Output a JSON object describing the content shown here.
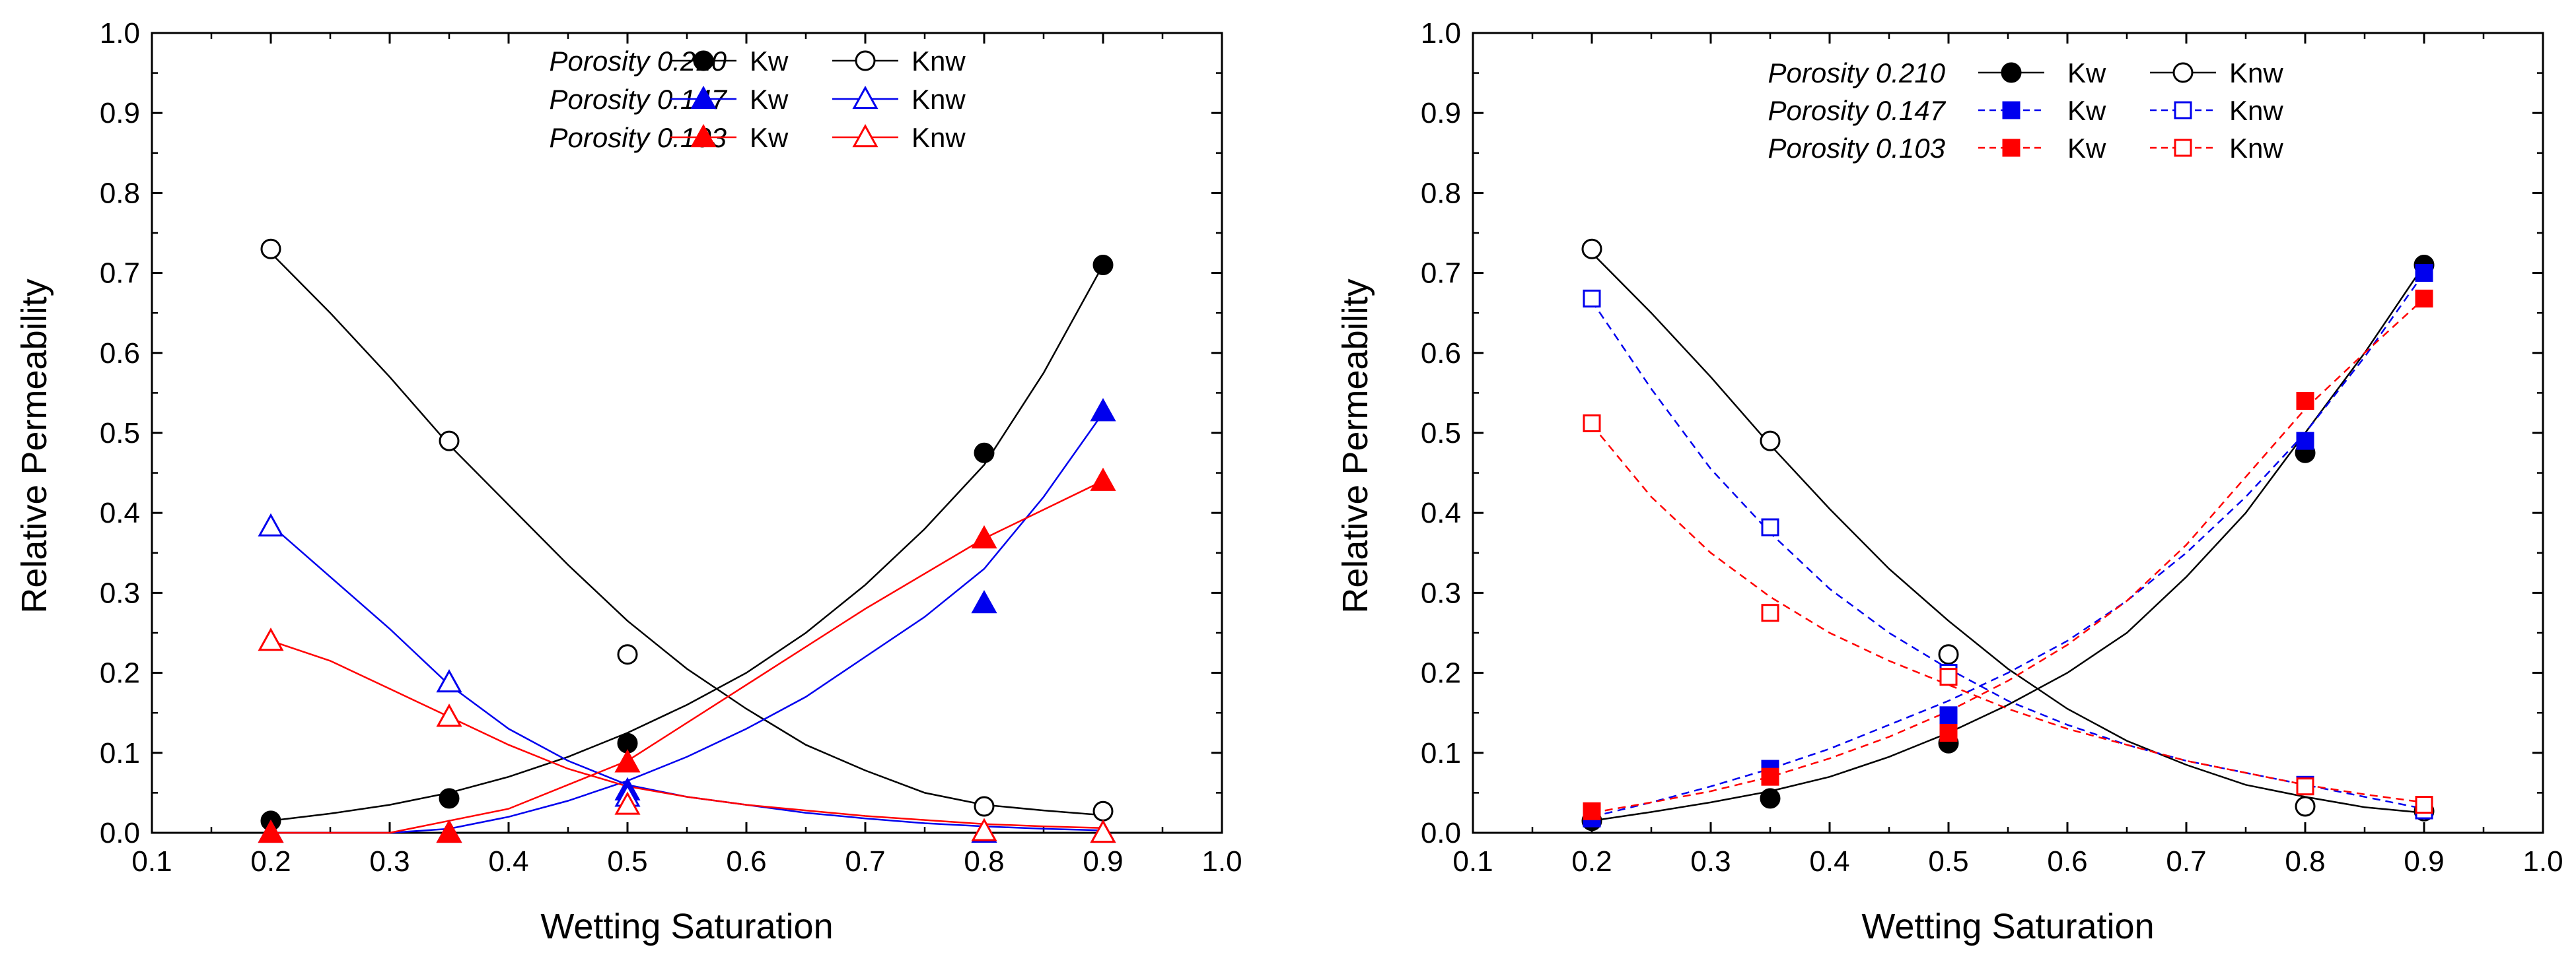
{
  "chart_data": [
    {
      "type": "scatter",
      "xlabel": "Wetting Saturation",
      "ylabel": "Relative Permeability",
      "xlim": [
        0.1,
        1.0
      ],
      "ylim": [
        0.0,
        1.0
      ],
      "xticks": [
        "0.1",
        "0.2",
        "0.3",
        "0.4",
        "0.5",
        "0.6",
        "0.7",
        "0.8",
        "0.9",
        "1.0"
      ],
      "yticks": [
        "0.0",
        "0.1",
        "0.2",
        "0.3",
        "0.4",
        "0.5",
        "0.6",
        "0.7",
        "0.8",
        "0.9",
        "1.0"
      ],
      "grid": false,
      "legend_position": "top",
      "legend_rows": [
        {
          "label": "Porosity 0.210",
          "kw": "Kw",
          "knw": "Knw"
        },
        {
          "label": "Porosity 0.147",
          "kw": "Kw",
          "knw": "Knw"
        },
        {
          "label": "Porosity 0.103",
          "kw": "Kw",
          "knw": "Knw"
        }
      ],
      "series": [
        {
          "group": 0,
          "kind": "Kw",
          "color": "#000000",
          "marker": "circle-filled",
          "line": "solid",
          "x": [
            0.2,
            0.35,
            0.5,
            0.8,
            0.9
          ],
          "y": [
            0.015,
            0.043,
            0.112,
            0.475,
            0.71
          ],
          "fit": {
            "x": [
              0.2,
              0.25,
              0.3,
              0.35,
              0.4,
              0.45,
              0.5,
              0.55,
              0.6,
              0.65,
              0.7,
              0.75,
              0.8,
              0.85,
              0.9
            ],
            "y": [
              0.015,
              0.024,
              0.035,
              0.05,
              0.07,
              0.095,
              0.125,
              0.16,
              0.2,
              0.25,
              0.31,
              0.38,
              0.46,
              0.575,
              0.71
            ]
          }
        },
        {
          "group": 0,
          "kind": "Knw",
          "color": "#000000",
          "marker": "circle-open",
          "line": "solid",
          "x": [
            0.2,
            0.35,
            0.5,
            0.8,
            0.9
          ],
          "y": [
            0.73,
            0.49,
            0.223,
            0.033,
            0.027
          ],
          "fit": {
            "x": [
              0.2,
              0.25,
              0.3,
              0.35,
              0.4,
              0.45,
              0.5,
              0.55,
              0.6,
              0.65,
              0.7,
              0.75,
              0.8,
              0.85,
              0.9
            ],
            "y": [
              0.725,
              0.65,
              0.57,
              0.485,
              0.41,
              0.335,
              0.265,
              0.205,
              0.155,
              0.11,
              0.078,
              0.05,
              0.035,
              0.028,
              0.022
            ]
          }
        },
        {
          "group": 1,
          "kind": "Kw",
          "color": "#0000ee",
          "marker": "triangle-filled",
          "line": "solid",
          "x": [
            0.2,
            0.35,
            0.5,
            0.8,
            0.9
          ],
          "y": [
            0.0,
            0.0,
            0.053,
            0.287,
            0.527
          ],
          "fit": {
            "x": [
              0.2,
              0.25,
              0.3,
              0.35,
              0.4,
              0.45,
              0.5,
              0.55,
              0.6,
              0.65,
              0.7,
              0.75,
              0.8,
              0.85,
              0.9
            ],
            "y": [
              0.0,
              0.0,
              0.0,
              0.005,
              0.02,
              0.04,
              0.065,
              0.095,
              0.13,
              0.17,
              0.22,
              0.27,
              0.33,
              0.42,
              0.525
            ]
          }
        },
        {
          "group": 1,
          "kind": "Knw",
          "color": "#0000ee",
          "marker": "triangle-open",
          "line": "solid",
          "x": [
            0.2,
            0.35,
            0.5,
            0.8,
            0.9
          ],
          "y": [
            0.383,
            0.188,
            0.045,
            0.0,
            0.0
          ],
          "fit": {
            "x": [
              0.2,
              0.25,
              0.3,
              0.35,
              0.4,
              0.45,
              0.5,
              0.55,
              0.6,
              0.65,
              0.7,
              0.75,
              0.8,
              0.85,
              0.9
            ],
            "y": [
              0.385,
              0.32,
              0.255,
              0.185,
              0.13,
              0.09,
              0.06,
              0.045,
              0.035,
              0.025,
              0.018,
              0.012,
              0.008,
              0.005,
              0.003
            ]
          }
        },
        {
          "group": 2,
          "kind": "Kw",
          "color": "#ff0000",
          "marker": "triangle-filled",
          "line": "solid",
          "x": [
            0.2,
            0.35,
            0.5,
            0.8,
            0.9
          ],
          "y": [
            0.0,
            0.0,
            0.088,
            0.368,
            0.44
          ],
          "fit": {
            "x": [
              0.2,
              0.3,
              0.4,
              0.5,
              0.6,
              0.7,
              0.8,
              0.9
            ],
            "y": [
              0.0,
              0.0,
              0.03,
              0.09,
              0.185,
              0.28,
              0.368,
              0.44
            ]
          }
        },
        {
          "group": 2,
          "kind": "Knw",
          "color": "#ff0000",
          "marker": "triangle-open",
          "line": "solid",
          "x": [
            0.2,
            0.35,
            0.5,
            0.8,
            0.9
          ],
          "y": [
            0.24,
            0.145,
            0.035,
            0.002,
            0.0
          ],
          "fit": {
            "x": [
              0.2,
              0.25,
              0.3,
              0.35,
              0.4,
              0.45,
              0.5,
              0.55,
              0.6,
              0.65,
              0.7,
              0.75,
              0.8,
              0.85,
              0.9
            ],
            "y": [
              0.24,
              0.215,
              0.18,
              0.145,
              0.11,
              0.08,
              0.058,
              0.045,
              0.035,
              0.028,
              0.021,
              0.016,
              0.011,
              0.008,
              0.006
            ]
          }
        }
      ]
    },
    {
      "type": "scatter",
      "xlabel": "Wetting Saturation",
      "ylabel": "Relative Permeability",
      "xlim": [
        0.1,
        1.0
      ],
      "ylim": [
        0.0,
        1.0
      ],
      "xticks": [
        "0.1",
        "0.2",
        "0.3",
        "0.4",
        "0.5",
        "0.6",
        "0.7",
        "0.8",
        "0.9",
        "1.0"
      ],
      "yticks": [
        "0.0",
        "0.1",
        "0.2",
        "0.3",
        "0.4",
        "0.5",
        "0.6",
        "0.7",
        "0.8",
        "0.9",
        "1.0"
      ],
      "grid": false,
      "legend_position": "top-right",
      "legend_rows": [
        {
          "label": "Porosity 0.210",
          "kw": "Kw",
          "knw": "Knw"
        },
        {
          "label": "Porosity 0.147",
          "kw": "Kw",
          "knw": "Knw"
        },
        {
          "label": "Porosity 0.103",
          "kw": "Kw",
          "knw": "Knw"
        }
      ],
      "series": [
        {
          "group": 0,
          "kind": "Kw",
          "color": "#000000",
          "marker": "circle-filled",
          "line": "solid",
          "x": [
            0.2,
            0.35,
            0.5,
            0.8,
            0.9
          ],
          "y": [
            0.015,
            0.043,
            0.112,
            0.475,
            0.71
          ],
          "fit": {
            "x": [
              0.2,
              0.25,
              0.3,
              0.35,
              0.4,
              0.45,
              0.5,
              0.55,
              0.6,
              0.65,
              0.7,
              0.75,
              0.8,
              0.85,
              0.9
            ],
            "y": [
              0.015,
              0.026,
              0.038,
              0.052,
              0.07,
              0.095,
              0.125,
              0.16,
              0.2,
              0.25,
              0.32,
              0.4,
              0.5,
              0.6,
              0.71
            ]
          }
        },
        {
          "group": 0,
          "kind": "Knw",
          "color": "#000000",
          "marker": "circle-open",
          "line": "solid",
          "x": [
            0.2,
            0.35,
            0.5,
            0.8,
            0.9
          ],
          "y": [
            0.73,
            0.49,
            0.223,
            0.033,
            0.027
          ],
          "fit": {
            "x": [
              0.2,
              0.25,
              0.3,
              0.35,
              0.4,
              0.45,
              0.5,
              0.55,
              0.6,
              0.65,
              0.7,
              0.75,
              0.8,
              0.85,
              0.9
            ],
            "y": [
              0.725,
              0.65,
              0.57,
              0.485,
              0.405,
              0.33,
              0.265,
              0.205,
              0.155,
              0.115,
              0.085,
              0.06,
              0.045,
              0.032,
              0.025
            ]
          }
        },
        {
          "group": 1,
          "kind": "Kw",
          "color": "#0000ee",
          "marker": "square-filled",
          "line": "dashed",
          "x": [
            0.2,
            0.35,
            0.5,
            0.8,
            0.9
          ],
          "y": [
            0.018,
            0.08,
            0.147,
            0.49,
            0.7
          ],
          "fit": {
            "x": [
              0.2,
              0.25,
              0.3,
              0.35,
              0.4,
              0.45,
              0.5,
              0.55,
              0.6,
              0.65,
              0.7,
              0.75,
              0.8,
              0.85,
              0.9
            ],
            "y": [
              0.02,
              0.038,
              0.058,
              0.08,
              0.105,
              0.135,
              0.165,
              0.2,
              0.24,
              0.29,
              0.35,
              0.42,
              0.5,
              0.595,
              0.7
            ]
          }
        },
        {
          "group": 1,
          "kind": "Knw",
          "color": "#0000ee",
          "marker": "square-open",
          "line": "dashed",
          "x": [
            0.2,
            0.35,
            0.5,
            0.8,
            0.9
          ],
          "y": [
            0.668,
            0.382,
            0.2,
            0.06,
            0.028
          ],
          "fit": {
            "x": [
              0.2,
              0.25,
              0.3,
              0.35,
              0.4,
              0.45,
              0.5,
              0.55,
              0.6,
              0.65,
              0.7,
              0.75,
              0.8,
              0.85,
              0.9
            ],
            "y": [
              0.665,
              0.555,
              0.455,
              0.375,
              0.305,
              0.25,
              0.205,
              0.165,
              0.135,
              0.11,
              0.09,
              0.075,
              0.06,
              0.045,
              0.03
            ]
          }
        },
        {
          "group": 2,
          "kind": "Kw",
          "color": "#ff0000",
          "marker": "square-filled",
          "line": "dashed",
          "x": [
            0.2,
            0.35,
            0.5,
            0.8,
            0.9
          ],
          "y": [
            0.027,
            0.07,
            0.125,
            0.54,
            0.668
          ],
          "fit": {
            "x": [
              0.2,
              0.25,
              0.3,
              0.35,
              0.4,
              0.45,
              0.5,
              0.55,
              0.6,
              0.65,
              0.7,
              0.75,
              0.8,
              0.85,
              0.9
            ],
            "y": [
              0.025,
              0.038,
              0.052,
              0.07,
              0.093,
              0.12,
              0.152,
              0.19,
              0.235,
              0.29,
              0.36,
              0.445,
              0.53,
              0.6,
              0.668
            ]
          }
        },
        {
          "group": 2,
          "kind": "Knw",
          "color": "#ff0000",
          "marker": "square-open",
          "line": "dashed",
          "x": [
            0.2,
            0.35,
            0.5,
            0.8,
            0.9
          ],
          "y": [
            0.512,
            0.275,
            0.195,
            0.058,
            0.035
          ],
          "fit": {
            "x": [
              0.2,
              0.25,
              0.3,
              0.35,
              0.4,
              0.45,
              0.5,
              0.55,
              0.6,
              0.65,
              0.7,
              0.75,
              0.8,
              0.85,
              0.9
            ],
            "y": [
              0.51,
              0.42,
              0.35,
              0.295,
              0.25,
              0.215,
              0.185,
              0.155,
              0.13,
              0.11,
              0.09,
              0.075,
              0.06,
              0.048,
              0.038
            ]
          }
        }
      ]
    }
  ]
}
